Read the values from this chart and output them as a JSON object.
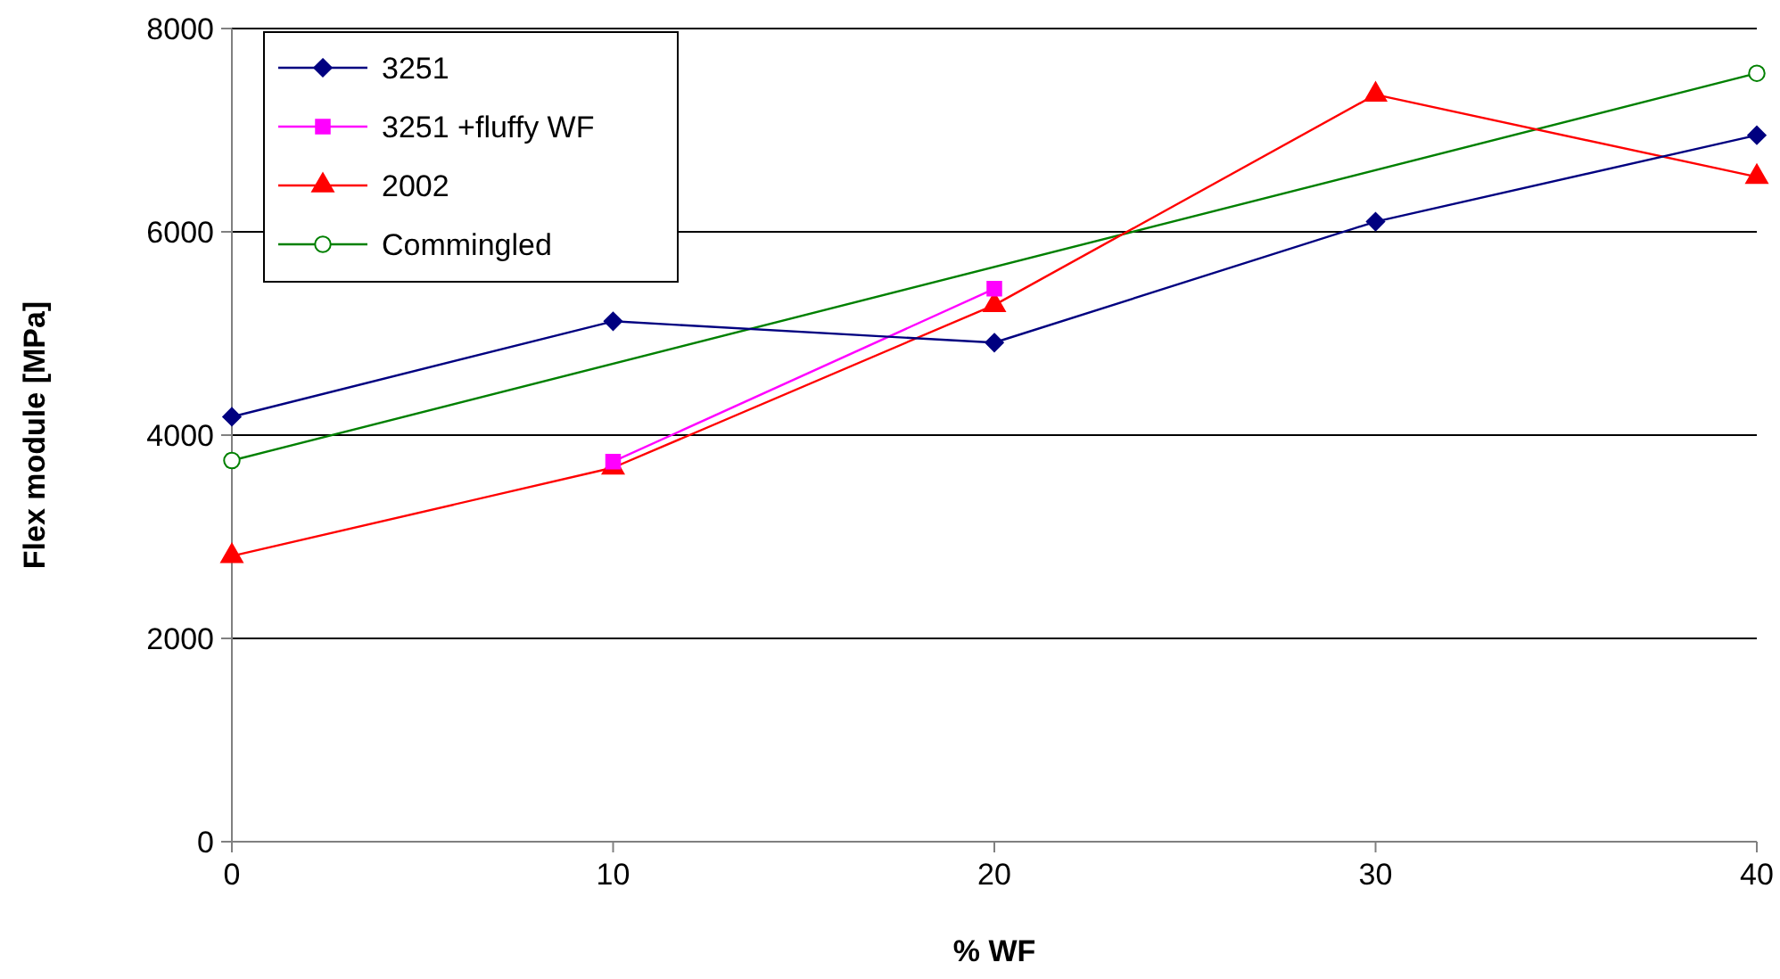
{
  "chart_data": {
    "type": "line",
    "xlabel": "% WF",
    "ylabel": "Flex module [MPa]",
    "xlim": [
      0,
      40
    ],
    "xticks": [
      0,
      10,
      20,
      30,
      40
    ],
    "ylim": [
      0,
      8000
    ],
    "yticks": [
      0,
      2000,
      4000,
      6000,
      8000
    ],
    "grid": "y",
    "legend": "top left",
    "line_style": "solid",
    "series": [
      {
        "name": "3251",
        "color": "#000080",
        "marker": "diamond",
        "x": [
          0,
          10,
          20,
          30,
          40
        ],
        "values": [
          4180,
          5120,
          4910,
          6100,
          6950
        ]
      },
      {
        "name": "3251 +fluffy WF",
        "color": "#ff00ff",
        "marker": "square",
        "x": [
          10,
          20
        ],
        "values": [
          3740,
          5440
        ]
      },
      {
        "name": "2002",
        "color": "#ff0000",
        "marker": "triangle",
        "x": [
          0,
          10,
          20,
          30,
          40
        ],
        "values": [
          2810,
          3680,
          5280,
          7350,
          6540
        ]
      },
      {
        "name": "Commingled",
        "color": "#008000",
        "marker": "circle",
        "x": [
          0,
          40
        ],
        "values": [
          3750,
          7560
        ]
      }
    ]
  }
}
